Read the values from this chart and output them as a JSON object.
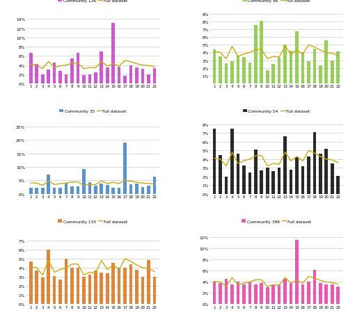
{
  "x": [
    1,
    2,
    3,
    4,
    5,
    6,
    7,
    8,
    9,
    10,
    11,
    12,
    13,
    14,
    15,
    16,
    17,
    18,
    19,
    20,
    21,
    22
  ],
  "full_dataset": [
    4.1,
    4.0,
    3.2,
    4.8,
    3.5,
    3.8,
    4.0,
    4.4,
    4.4,
    3.2,
    3.5,
    3.4,
    4.8,
    3.8,
    4.3,
    3.8,
    5.0,
    4.7,
    4.3,
    4.0,
    3.9,
    3.6
  ],
  "communities": [
    {
      "name": "Community 126",
      "bar_color": "#cc44cc",
      "ylim": [
        0,
        0.155
      ],
      "yticks": [
        0.0,
        0.02,
        0.04,
        0.06,
        0.08,
        0.1,
        0.12,
        0.14
      ],
      "ytick_labels": [
        "0%",
        "2%",
        "4%",
        "6%",
        "8%",
        "10%",
        "12%",
        "14%"
      ],
      "values": [
        6.7,
        4.2,
        1.9,
        3.0,
        4.6,
        2.7,
        2.0,
        5.5,
        6.6,
        1.8,
        1.9,
        2.4,
        7.0,
        3.5,
        13.2,
        3.7,
        1.7,
        4.0,
        3.5,
        3.1,
        2.0,
        3.4
      ]
    },
    {
      "name": "Community 46",
      "bar_color": "#88cc44",
      "ylim": [
        0,
        0.092
      ],
      "yticks": [
        0.01,
        0.02,
        0.03,
        0.04,
        0.05,
        0.06,
        0.07,
        0.08,
        0.09
      ],
      "ytick_labels": [
        "1%",
        "2%",
        "3%",
        "4%",
        "5%",
        "6%",
        "7%",
        "8%",
        "9%"
      ],
      "values": [
        4.4,
        3.5,
        2.6,
        2.9,
        3.6,
        3.4,
        2.7,
        7.5,
        8.1,
        1.7,
        2.5,
        3.3,
        5.0,
        4.2,
        6.7,
        4.0,
        2.9,
        4.5,
        2.3,
        5.6,
        3.0,
        4.1
      ]
    },
    {
      "name": "Community 35",
      "bar_color": "#4488cc",
      "ylim": [
        0,
        0.265
      ],
      "yticks": [
        0.0,
        0.05,
        0.1,
        0.15,
        0.2,
        0.25
      ],
      "ytick_labels": [
        "0%",
        "5%",
        "10%",
        "15%",
        "20%",
        "25%"
      ],
      "values": [
        2.3,
        2.3,
        2.2,
        7.2,
        2.2,
        2.2,
        4.0,
        2.8,
        2.7,
        9.3,
        4.2,
        3.0,
        3.7,
        3.4,
        2.3,
        2.2,
        19.0,
        3.5,
        3.8,
        2.5,
        3.0,
        6.3
      ]
    },
    {
      "name": "Community 54",
      "bar_color": "#111111",
      "ylim": [
        0,
        0.082
      ],
      "yticks": [
        0.0,
        0.01,
        0.02,
        0.03,
        0.04,
        0.05,
        0.06,
        0.07,
        0.08
      ],
      "ytick_labels": [
        "0%",
        "1%",
        "2%",
        "3%",
        "4%",
        "5%",
        "6%",
        "7%",
        "8%"
      ],
      "values": [
        7.5,
        4.5,
        2.0,
        7.5,
        4.6,
        3.3,
        2.5,
        5.1,
        2.7,
        3.0,
        2.6,
        3.0,
        6.6,
        2.8,
        4.2,
        3.2,
        4.3,
        7.1,
        4.6,
        5.2,
        3.5,
        2.1
      ]
    },
    {
      "name": "Community 133",
      "bar_color": "#e07820",
      "ylim": [
        0,
        0.078
      ],
      "yticks": [
        0.0,
        0.01,
        0.02,
        0.03,
        0.04,
        0.05,
        0.06,
        0.07
      ],
      "ytick_labels": [
        "0%",
        "1%",
        "2%",
        "3%",
        "4%",
        "5%",
        "6%",
        "7%"
      ],
      "values": [
        4.7,
        3.7,
        2.9,
        6.0,
        3.1,
        2.7,
        5.0,
        4.0,
        4.0,
        3.0,
        3.2,
        3.7,
        3.5,
        3.4,
        4.5,
        4.0,
        4.0,
        4.4,
        3.8,
        3.0,
        4.8,
        3.0
      ]
    },
    {
      "name": "Community 396",
      "bar_color": "#ee44aa",
      "ylim": [
        0,
        0.128
      ],
      "yticks": [
        0.0,
        0.02,
        0.04,
        0.06,
        0.08,
        0.1,
        0.12
      ],
      "ytick_labels": [
        "0%",
        "2%",
        "4%",
        "6%",
        "8%",
        "10%",
        "12%"
      ],
      "values": [
        4.0,
        3.8,
        4.5,
        3.5,
        4.0,
        3.5,
        4.0,
        3.5,
        3.8,
        3.0,
        3.5,
        3.5,
        4.5,
        3.8,
        11.5,
        3.5,
        4.0,
        6.2,
        3.8,
        3.5,
        3.5,
        3.2
      ]
    }
  ],
  "full_dataset_color": "#ccaa00",
  "full_dataset_label": "Full dataset",
  "background_color": "#ffffff",
  "grid_color": "#cccccc"
}
